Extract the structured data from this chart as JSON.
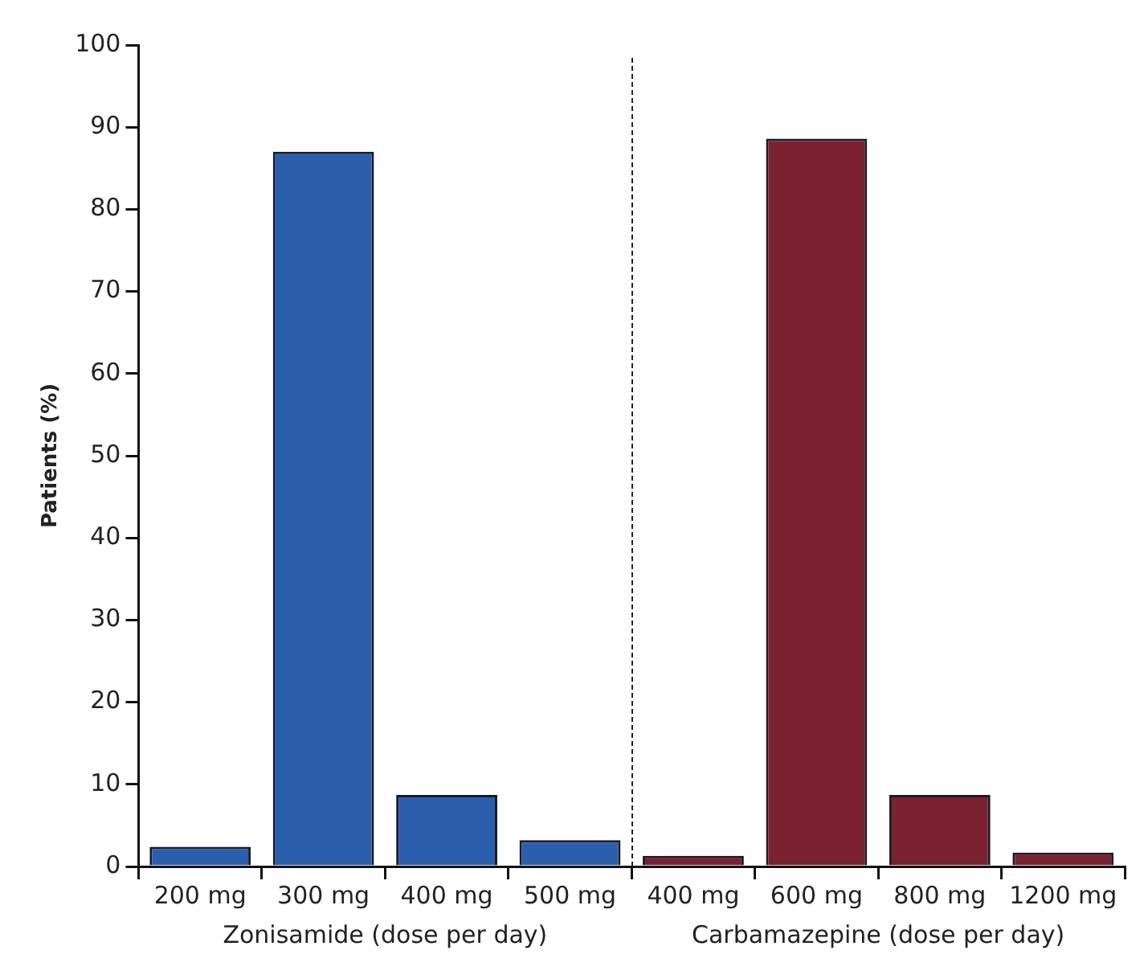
{
  "chart_data": {
    "type": "bar",
    "ylabel": "Patients (%)",
    "categories": [
      "200 mg",
      "300 mg",
      "400 mg",
      "500 mg",
      "400 mg",
      "600 mg",
      "800 mg",
      "1200 mg"
    ],
    "series": [
      {
        "name": "Zonisamide (dose per day)",
        "color": "#2b5fae",
        "values": [
          2.4,
          87,
          8.7,
          3.2,
          null,
          null,
          null,
          null
        ]
      },
      {
        "name": "Carbamazepine (dose per day)",
        "color": "#7a2230",
        "values": [
          null,
          null,
          null,
          null,
          1.3,
          88.6,
          8.7,
          1.7
        ]
      }
    ],
    "ylim": [
      0,
      100
    ],
    "yticks": [
      0,
      10,
      20,
      30,
      40,
      50,
      60,
      70,
      80,
      90,
      100
    ],
    "grid": false,
    "legend": false
  }
}
